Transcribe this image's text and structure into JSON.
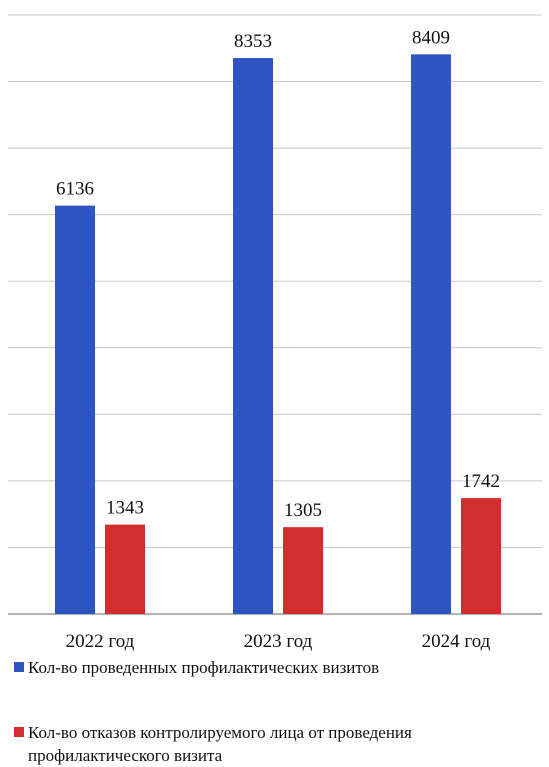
{
  "chart_data": {
    "type": "bar",
    "categories": [
      "2022 год",
      "2023 год",
      "2024 год"
    ],
    "series": [
      {
        "name": "Кол-во проведенных профилактических визитов",
        "values": [
          6136,
          8353,
          8409
        ],
        "color": "#2f55c2"
      },
      {
        "name": "Кол-во отказов контролируемого лица от проведения профилактического визита",
        "values": [
          1343,
          1305,
          1742
        ],
        "color": "#d12f2f"
      }
    ],
    "title": "",
    "xlabel": "",
    "ylabel": "",
    "ylim": [
      0,
      9000
    ],
    "grid": true,
    "legend": "bottom"
  }
}
